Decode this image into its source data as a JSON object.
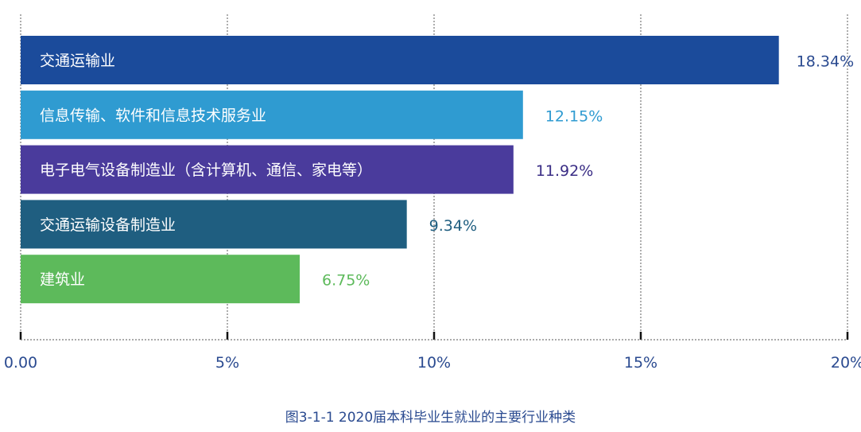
{
  "chart_data": {
    "type": "bar",
    "orientation": "horizontal",
    "title": "图3-1-1   2020届本科毕业生就业的主要行业种类",
    "categories": [
      "交通运输业",
      "信息传输、软件和信息技术服务业",
      "电子电气设备制造业（含计算机、通信、家电等）",
      "交通运输设备制造业",
      "建筑业"
    ],
    "values": [
      18.34,
      12.15,
      11.92,
      9.34,
      6.75
    ],
    "value_labels": [
      "18.34%",
      "12.15%",
      "11.92%",
      "9.34%",
      "6.75%"
    ],
    "bar_colors": [
      "#1b4b9b",
      "#2f9bd1",
      "#4a3b9c",
      "#1f5e80",
      "#5dba5b"
    ],
    "label_colors": [
      "#2a4a90",
      "#2f9bd1",
      "#3a2d85",
      "#1f5e80",
      "#5dba5b"
    ],
    "xlim": [
      0,
      20
    ],
    "xticks": [
      0,
      5,
      10,
      15,
      20
    ],
    "xtick_labels": [
      "0.00",
      "5%",
      "10%",
      "15%",
      "20%"
    ],
    "xlabel": "",
    "ylabel": "",
    "grid": "vertical dashed"
  }
}
